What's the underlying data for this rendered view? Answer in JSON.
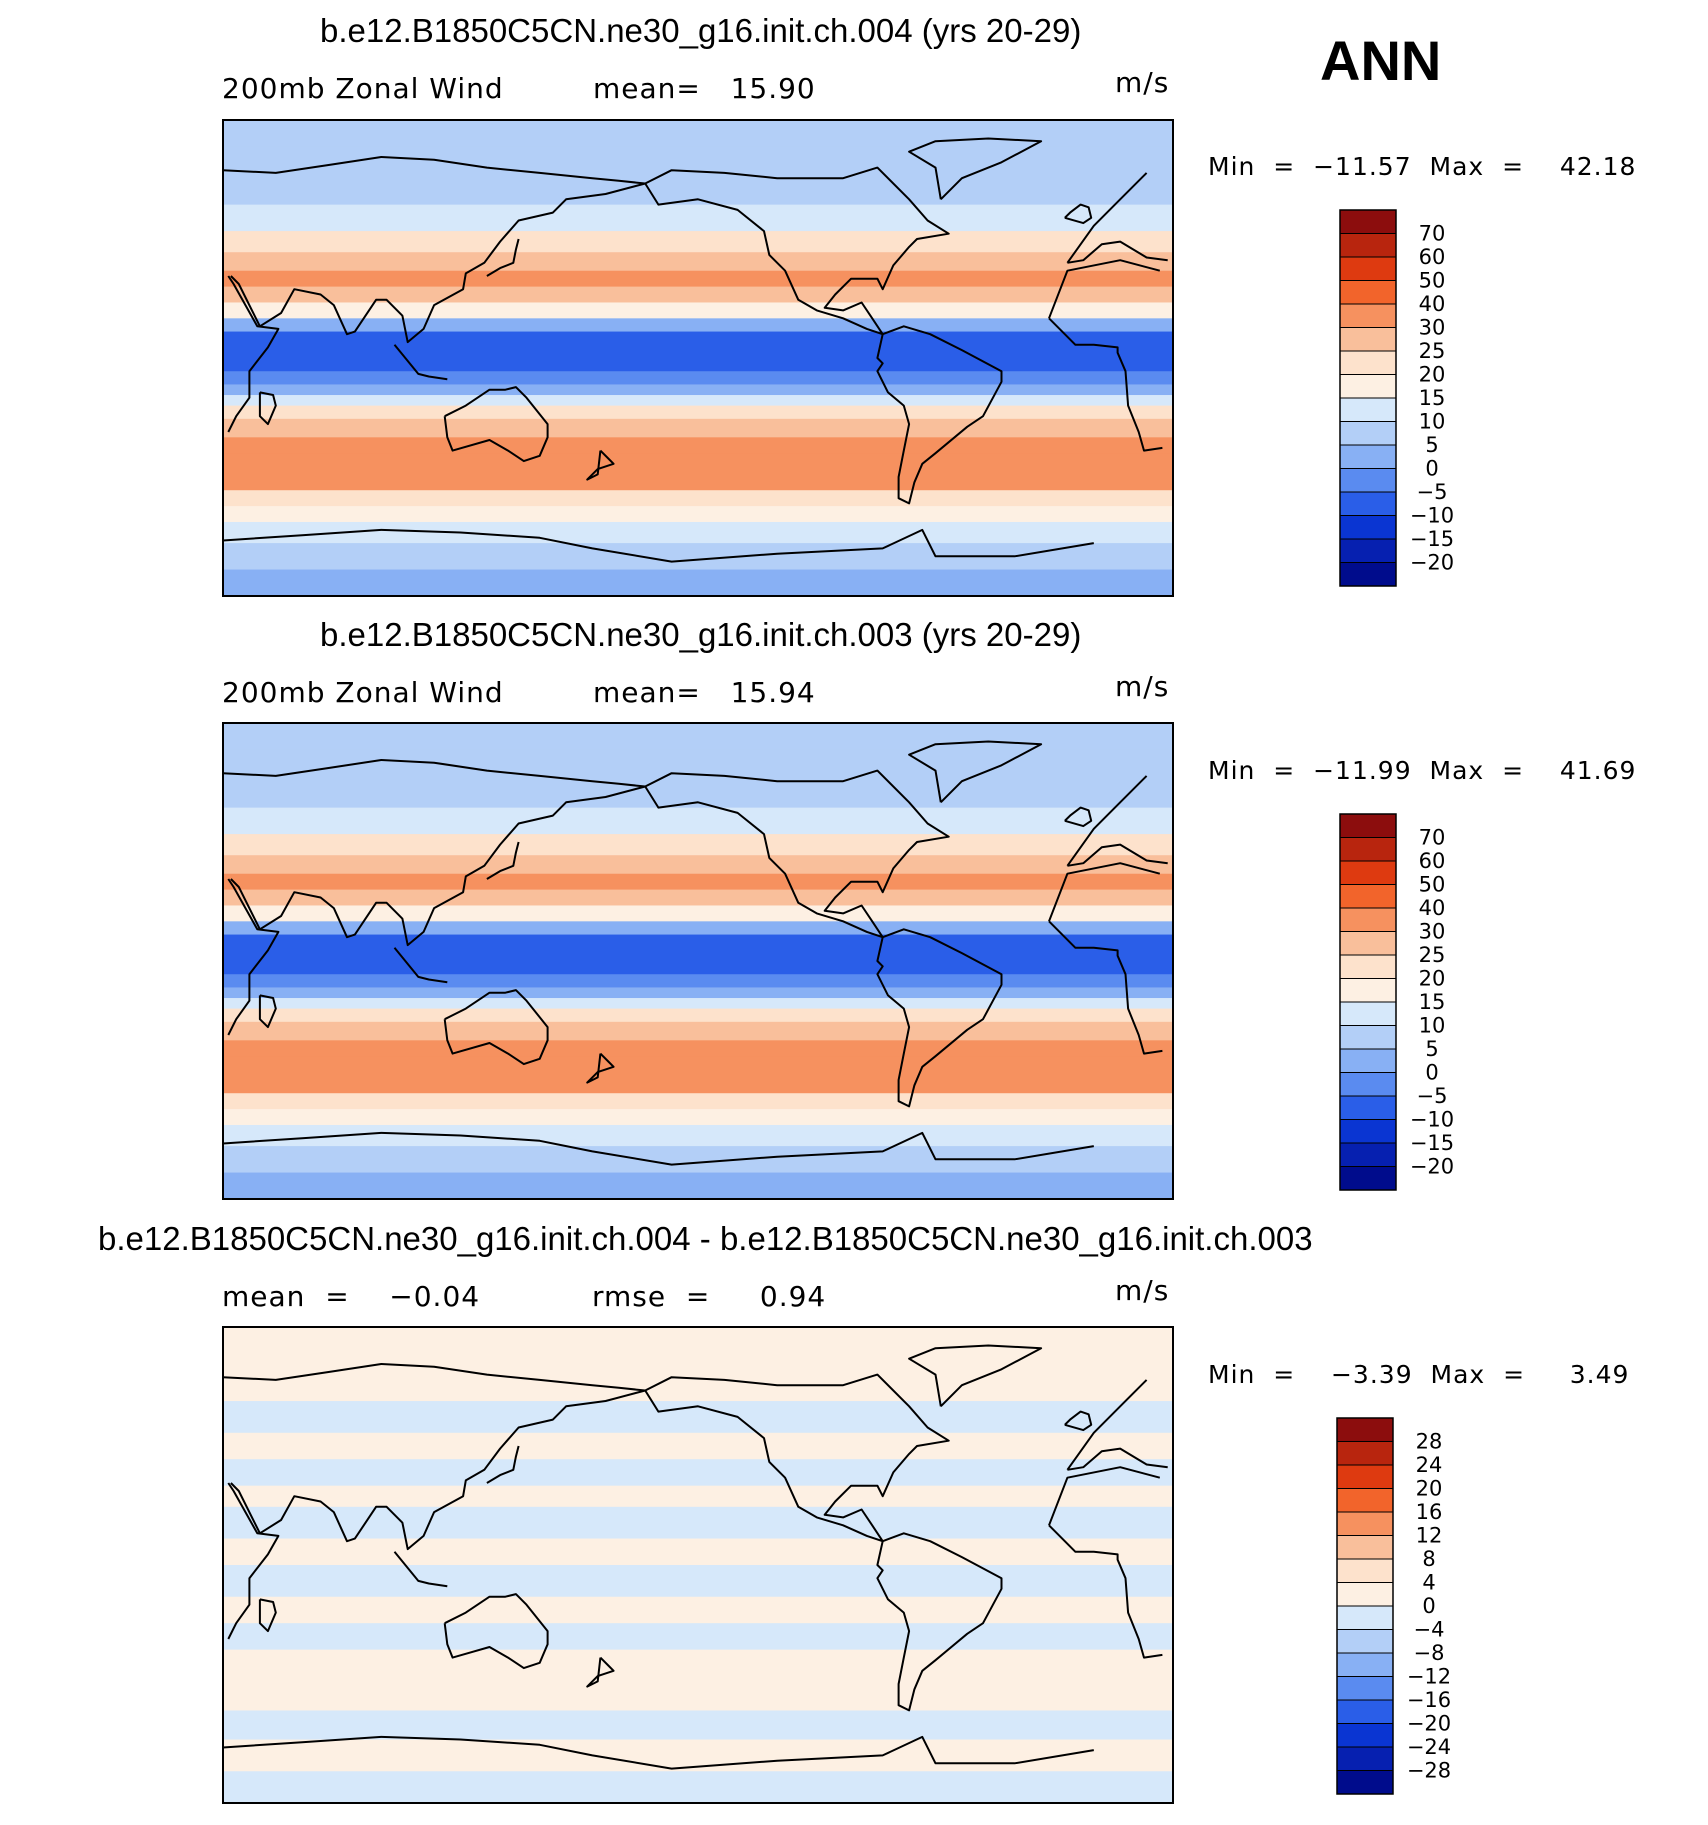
{
  "season": "ANN",
  "chart_data": [
    {
      "type": "heatmap",
      "title": "b.e12.B1850C5CN.ne30_g16.init.ch.004 (yrs 20-29)",
      "left_label": "200mb Zonal Wind",
      "center_label": "mean=   15.90",
      "units": "m/s",
      "min_max": "Min  =  −11.57  Max  =    42.18",
      "colorbar": {
        "levels": [
          "70",
          "60",
          "50",
          "40",
          "30",
          "25",
          "20",
          "15",
          "10",
          "5",
          "0",
          "−5",
          "−10",
          "−15",
          "−20"
        ],
        "colors": [
          "#8c0d0d",
          "#b8250e",
          "#de3a10",
          "#f2642b",
          "#f6915f",
          "#f9bf9b",
          "#fde2cc",
          "#fdf0e3",
          "#d6e8fa",
          "#b3cff7",
          "#88b0f4",
          "#5a8bf0",
          "#2a5ee8",
          "#0a35d2",
          "#0620b0",
          "#000c8c"
        ]
      },
      "bands": [
        {
          "lat": 90,
          "value": 6
        },
        {
          "lat": 80,
          "value": 5
        },
        {
          "lat": 68,
          "value": 9
        },
        {
          "lat": 58,
          "value": 14
        },
        {
          "lat": 48,
          "value": 21
        },
        {
          "lat": 40,
          "value": 28
        },
        {
          "lat": 33,
          "value": 33
        },
        {
          "lat": 27,
          "value": 27
        },
        {
          "lat": 21,
          "value": 16
        },
        {
          "lat": 15,
          "value": 3
        },
        {
          "lat": 10,
          "value": -6
        },
        {
          "lat": 5,
          "value": -10
        },
        {
          "lat": 0,
          "value": -8
        },
        {
          "lat": -5,
          "value": -3
        },
        {
          "lat": -10,
          "value": 4
        },
        {
          "lat": -14,
          "value": 13
        },
        {
          "lat": -18,
          "value": 20
        },
        {
          "lat": -23,
          "value": 27
        },
        {
          "lat": -30,
          "value": 33
        },
        {
          "lat": -36,
          "value": 34
        },
        {
          "lat": -43,
          "value": 30
        },
        {
          "lat": -50,
          "value": 23
        },
        {
          "lat": -56,
          "value": 15
        },
        {
          "lat": -62,
          "value": 10
        },
        {
          "lat": -70,
          "value": 5
        },
        {
          "lat": -80,
          "value": 2
        },
        {
          "lat": -90,
          "value": 0
        }
      ]
    },
    {
      "type": "heatmap",
      "title": "b.e12.B1850C5CN.ne30_g16.init.ch.003 (yrs 20-29)",
      "left_label": "200mb Zonal Wind",
      "center_label": "mean=   15.94",
      "units": "m/s",
      "min_max": "Min  =  −11.99  Max  =    41.69",
      "colorbar": {
        "levels": [
          "70",
          "60",
          "50",
          "40",
          "30",
          "25",
          "20",
          "15",
          "10",
          "5",
          "0",
          "−5",
          "−10",
          "−15",
          "−20"
        ],
        "colors": [
          "#8c0d0d",
          "#b8250e",
          "#de3a10",
          "#f2642b",
          "#f6915f",
          "#f9bf9b",
          "#fde2cc",
          "#fdf0e3",
          "#d6e8fa",
          "#b3cff7",
          "#88b0f4",
          "#5a8bf0",
          "#2a5ee8",
          "#0a35d2",
          "#0620b0",
          "#000c8c"
        ]
      },
      "bands": [
        {
          "lat": 90,
          "value": 6
        },
        {
          "lat": 80,
          "value": 5
        },
        {
          "lat": 68,
          "value": 9
        },
        {
          "lat": 58,
          "value": 14
        },
        {
          "lat": 48,
          "value": 21
        },
        {
          "lat": 40,
          "value": 28
        },
        {
          "lat": 33,
          "value": 33
        },
        {
          "lat": 27,
          "value": 27
        },
        {
          "lat": 21,
          "value": 16
        },
        {
          "lat": 15,
          "value": 3
        },
        {
          "lat": 10,
          "value": -6
        },
        {
          "lat": 5,
          "value": -10
        },
        {
          "lat": 0,
          "value": -8
        },
        {
          "lat": -5,
          "value": -3
        },
        {
          "lat": -10,
          "value": 4
        },
        {
          "lat": -14,
          "value": 13
        },
        {
          "lat": -18,
          "value": 20
        },
        {
          "lat": -23,
          "value": 27
        },
        {
          "lat": -30,
          "value": 33
        },
        {
          "lat": -36,
          "value": 34
        },
        {
          "lat": -43,
          "value": 30
        },
        {
          "lat": -50,
          "value": 23
        },
        {
          "lat": -56,
          "value": 15
        },
        {
          "lat": -62,
          "value": 10
        },
        {
          "lat": -70,
          "value": 5
        },
        {
          "lat": -80,
          "value": 2
        },
        {
          "lat": -90,
          "value": 0
        }
      ]
    },
    {
      "type": "heatmap",
      "title": "b.e12.B1850C5CN.ne30_g16.init.ch.004 - b.e12.B1850C5CN.ne30_g16.init.ch.003",
      "left_label": "mean  =    −0.04",
      "center_label": "rmse  =     0.94",
      "units": "m/s",
      "min_max": "Min  =    −3.39  Max  =     3.49",
      "colorbar": {
        "levels": [
          "28",
          "24",
          "20",
          "16",
          "12",
          "8",
          "4",
          "0",
          "−4",
          "−8",
          "−12",
          "−16",
          "−20",
          "−24",
          "−28"
        ],
        "colors": [
          "#8c0d0d",
          "#b8250e",
          "#de3a10",
          "#f2642b",
          "#f6915f",
          "#f9bf9b",
          "#fde2cc",
          "#fdf0e3",
          "#d6e8fa",
          "#b3cff7",
          "#88b0f4",
          "#5a8bf0",
          "#2a5ee8",
          "#0a35d2",
          "#0620b0",
          "#000c8c"
        ]
      },
      "bands": [
        {
          "lat": 90,
          "value": 1
        },
        {
          "lat": 72,
          "value": 1
        },
        {
          "lat": 62,
          "value": -1
        },
        {
          "lat": 50,
          "value": 1
        },
        {
          "lat": 40,
          "value": -1
        },
        {
          "lat": 30,
          "value": 1
        },
        {
          "lat": 22,
          "value": -1
        },
        {
          "lat": 10,
          "value": 1
        },
        {
          "lat": 0,
          "value": -1
        },
        {
          "lat": -12,
          "value": 1
        },
        {
          "lat": -22,
          "value": -1
        },
        {
          "lat": -32,
          "value": 1
        },
        {
          "lat": -45,
          "value": 1
        },
        {
          "lat": -55,
          "value": -1
        },
        {
          "lat": -66,
          "value": 1
        },
        {
          "lat": -78,
          "value": -1
        },
        {
          "lat": -90,
          "value": -1
        }
      ]
    }
  ]
}
